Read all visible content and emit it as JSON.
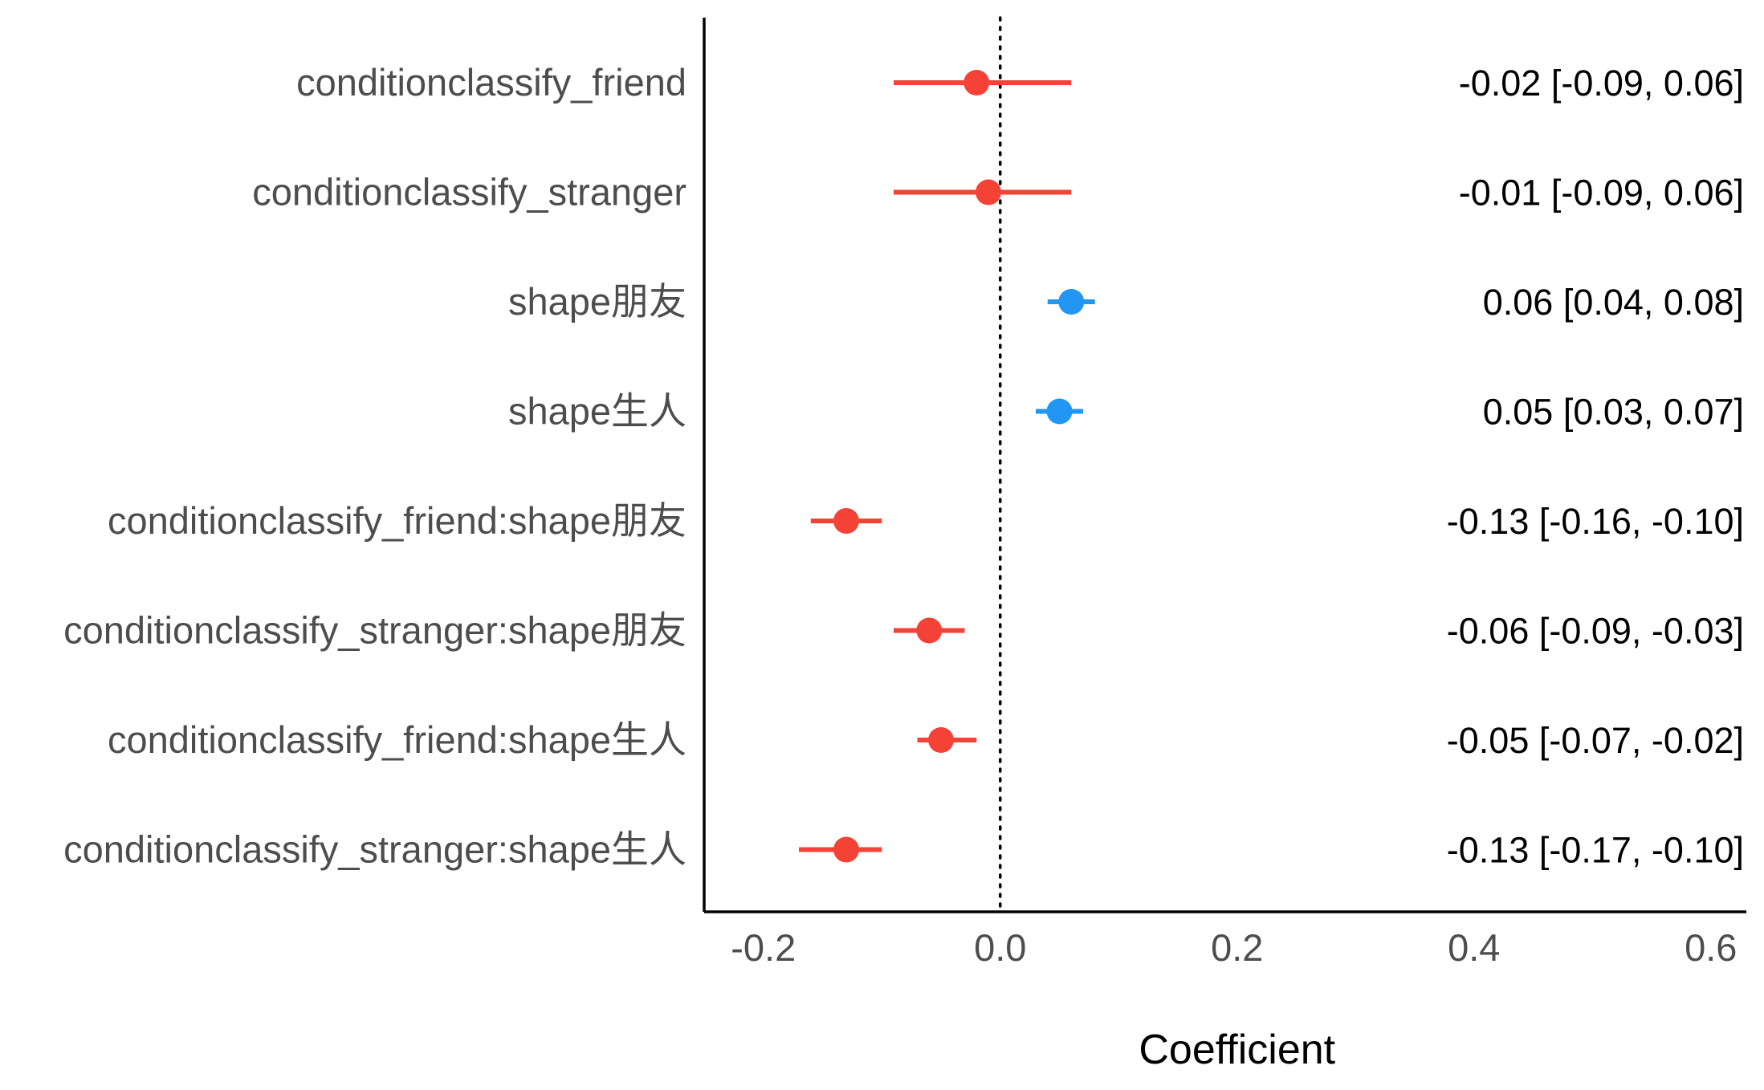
{
  "chart_data": {
    "type": "forest",
    "xlabel": "Coefficient",
    "xlim": [
      -0.25,
      0.63
    ],
    "x_ticks": [
      -0.2,
      0.0,
      0.2,
      0.4,
      0.6
    ],
    "x_tick_labels": [
      "-0.2",
      "0.0",
      "0.2",
      "0.4",
      "0.6"
    ],
    "reference_line": 0,
    "grid": false,
    "legend": "none",
    "colors": {
      "negative": "#f44336",
      "positive": "#2196f3",
      "axis": "#000000",
      "term_text": "#4d4d4d"
    },
    "terms": [
      {
        "term": "conditionclassify_friend",
        "estimate": -0.02,
        "ci_low": -0.09,
        "ci_high": 0.06,
        "label": "-0.02 [-0.09, 0.06]",
        "sign": "negative"
      },
      {
        "term": "conditionclassify_stranger",
        "estimate": -0.01,
        "ci_low": -0.09,
        "ci_high": 0.06,
        "label": "-0.01 [-0.09, 0.06]",
        "sign": "negative"
      },
      {
        "term": "shape朋友",
        "estimate": 0.06,
        "ci_low": 0.04,
        "ci_high": 0.08,
        "label": "0.06 [0.04, 0.08]",
        "sign": "positive"
      },
      {
        "term": "shape生人",
        "estimate": 0.05,
        "ci_low": 0.03,
        "ci_high": 0.07,
        "label": "0.05 [0.03, 0.07]",
        "sign": "positive"
      },
      {
        "term": "conditionclassify_friend:shape朋友",
        "estimate": -0.13,
        "ci_low": -0.16,
        "ci_high": -0.1,
        "label": "-0.13 [-0.16, -0.10]",
        "sign": "negative"
      },
      {
        "term": "conditionclassify_stranger:shape朋友",
        "estimate": -0.06,
        "ci_low": -0.09,
        "ci_high": -0.03,
        "label": "-0.06 [-0.09, -0.03]",
        "sign": "negative"
      },
      {
        "term": "conditionclassify_friend:shape生人",
        "estimate": -0.05,
        "ci_low": -0.07,
        "ci_high": -0.02,
        "label": "-0.05 [-0.07, -0.02]",
        "sign": "negative"
      },
      {
        "term": "conditionclassify_stranger:shape生人",
        "estimate": -0.13,
        "ci_low": -0.17,
        "ci_high": -0.1,
        "label": "-0.13 [-0.17, -0.10]",
        "sign": "negative"
      }
    ]
  }
}
